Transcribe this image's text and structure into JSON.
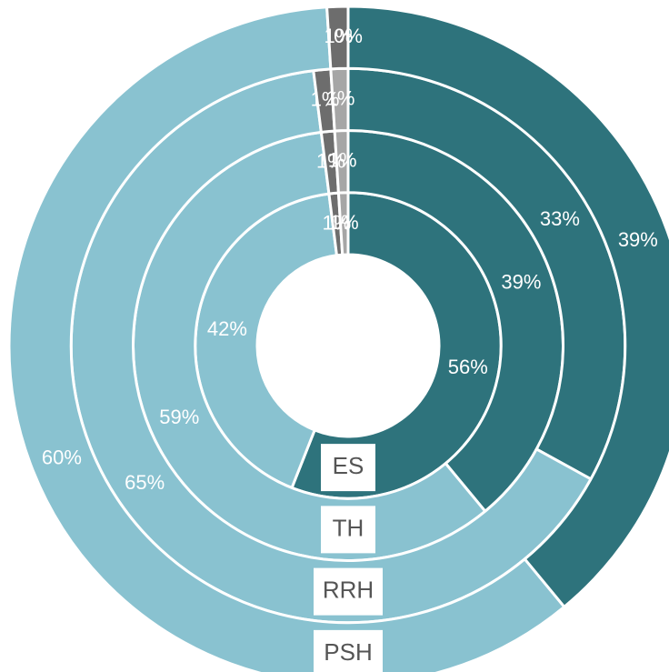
{
  "chart_data": {
    "type": "donut",
    "categories": [
      "ES",
      "TH",
      "RRH",
      "PSH"
    ],
    "series": [
      {
        "color": "#2e737c",
        "values": [
          56,
          39,
          33,
          39
        ],
        "value_labels": [
          "56%",
          "39%",
          "33%",
          "39%"
        ]
      },
      {
        "color": "#89c2d0",
        "values": [
          42,
          59,
          65,
          60
        ],
        "value_labels": [
          "42%",
          "59%",
          "65%",
          "60%"
        ]
      },
      {
        "color": "#6d6d6d",
        "values": [
          1,
          1,
          1,
          1
        ],
        "value_labels": [
          "1%",
          "1%",
          "1%",
          "1%"
        ]
      },
      {
        "color": "#a6a6a6",
        "values": [
          1,
          1,
          1,
          0
        ],
        "value_labels": [
          "1%",
          "1%",
          "1%",
          "0%"
        ]
      }
    ]
  }
}
